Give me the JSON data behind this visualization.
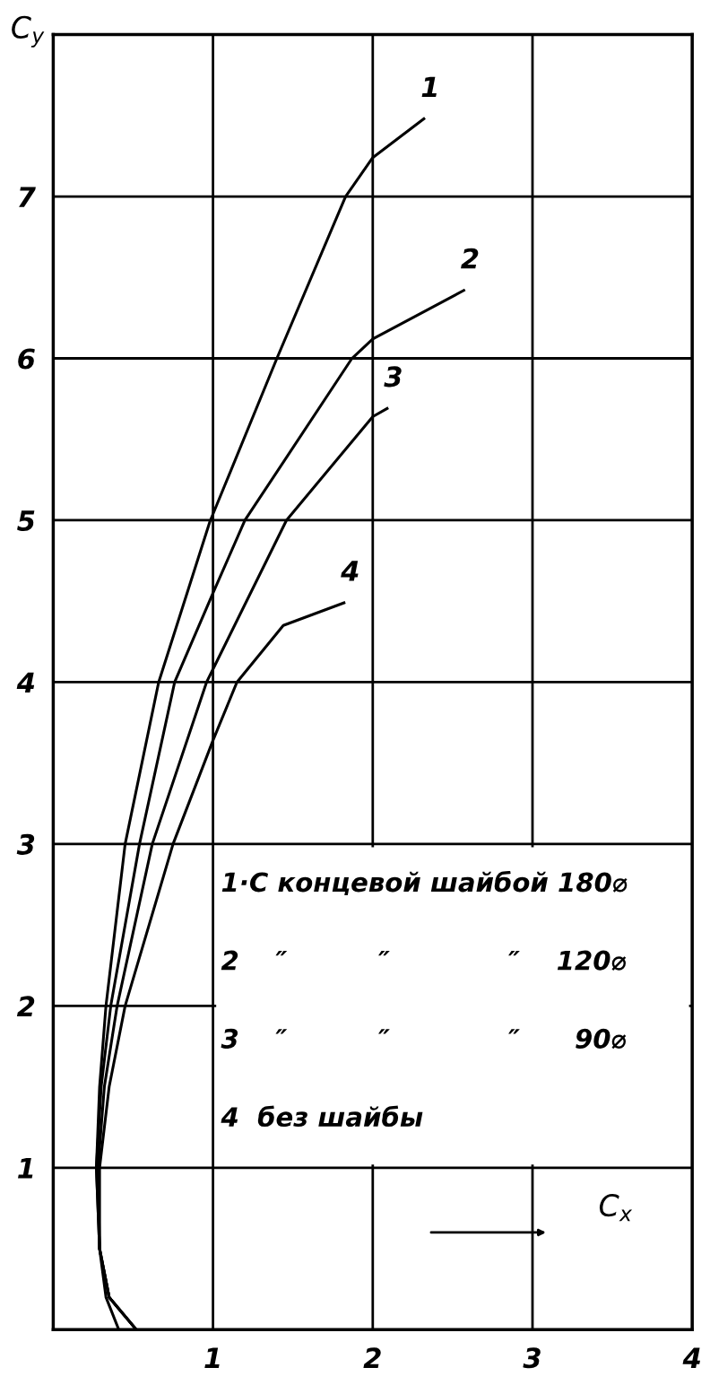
{
  "chart_data": {
    "type": "line",
    "xlabel": "C$_{x}$",
    "ylabel": "C$_{y}$",
    "xlim": [
      0,
      4
    ],
    "ylim": [
      0,
      8
    ],
    "xticks": [
      1,
      2,
      3,
      4
    ],
    "yticks": [
      1,
      2,
      3,
      4,
      5,
      6,
      7
    ],
    "grid": true,
    "marker": "none",
    "line_style": "solid",
    "annotations": [
      "1·С концевой шайбой 180⌀",
      "2    ″          ″             ″    120⌀",
      "3    ″          ″             ″      90⌀",
      "4  без шайбы"
    ],
    "series": [
      {
        "name": "1",
        "color": "#000000",
        "x": [
          0.52,
          0.35,
          0.29,
          0.27,
          0.29,
          0.33,
          0.45,
          0.66,
          0.98,
          1.4,
          1.83,
          2.0,
          2.32
        ],
        "values": [
          0,
          0.2,
          0.5,
          1.0,
          1.5,
          2.0,
          3.0,
          4.0,
          4.99,
          6.0,
          7.0,
          7.24,
          7.48
        ]
      },
      {
        "name": "2",
        "color": "#000000",
        "x": [
          0.52,
          0.35,
          0.29,
          0.27,
          0.3,
          0.36,
          0.54,
          0.76,
          1.0,
          1.2,
          1.87,
          2.0,
          2.57
        ],
        "values": [
          0,
          0.2,
          0.5,
          1.0,
          1.5,
          2.0,
          3.0,
          4.0,
          4.55,
          5.0,
          6.0,
          6.12,
          6.42
        ]
      },
      {
        "name": "3",
        "color": "#000000",
        "x": [
          0.52,
          0.35,
          0.29,
          0.28,
          0.32,
          0.4,
          0.62,
          0.96,
          1.0,
          1.46,
          2.0,
          2.09
        ],
        "values": [
          0,
          0.2,
          0.5,
          1.0,
          1.5,
          2.0,
          3.0,
          4.0,
          4.08,
          5.0,
          5.64,
          5.69
        ]
      },
      {
        "name": "4",
        "color": "#000000",
        "x": [
          0.41,
          0.33,
          0.29,
          0.29,
          0.35,
          0.45,
          0.75,
          1.0,
          1.15,
          1.44,
          1.82
        ],
        "values": [
          0,
          0.2,
          0.5,
          1.0,
          1.5,
          2.0,
          3.0,
          3.64,
          4.0,
          4.35,
          4.49
        ]
      }
    ]
  }
}
